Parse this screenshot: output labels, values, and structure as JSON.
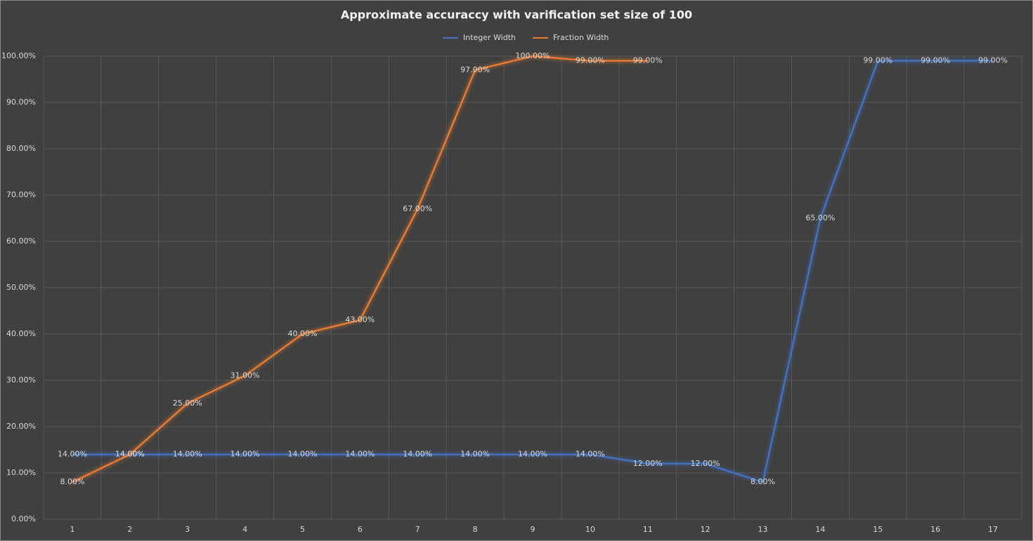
{
  "chart_data": {
    "type": "line",
    "title": "Approximate accuraccy with varification set size of 100",
    "categories": [
      1,
      2,
      3,
      4,
      5,
      6,
      7,
      8,
      9,
      10,
      11,
      12,
      13,
      14,
      15,
      16,
      17
    ],
    "series": [
      {
        "name": "Integer Width",
        "color": "#4472c4",
        "values": [
          14,
          14,
          14,
          14,
          14,
          14,
          14,
          14,
          14,
          14,
          12,
          12,
          8,
          65,
          99,
          99,
          99
        ],
        "value_labels": [
          "14.00%",
          "14.00%",
          "14.00%",
          "14.00%",
          "14.00%",
          "14.00%",
          "14.00%",
          "14.00%",
          "14.00%",
          "14.00%",
          "12.00%",
          "12.00%",
          "8.00%",
          "65.00%",
          "99.00%",
          "99.00%",
          "99.00%"
        ]
      },
      {
        "name": "Fraction Width",
        "color": "#ed7d31",
        "values": [
          8,
          14,
          25,
          31,
          40,
          43,
          67,
          97,
          100,
          99,
          99,
          null,
          null,
          null,
          null,
          null,
          null
        ],
        "value_labels": [
          "8.00%",
          "14.00%",
          "25.00%",
          "31.00%",
          "40.00%",
          "43.00%",
          "67.00%",
          "97.00%",
          "100.00%",
          "99.00%",
          "99.00%",
          null,
          null,
          null,
          null,
          null,
          null
        ]
      }
    ],
    "ylim": [
      0,
      100
    ],
    "yticks": [
      {
        "value": 0,
        "label": "0.00%"
      },
      {
        "value": 10,
        "label": "10.00%"
      },
      {
        "value": 20,
        "label": "20.00%"
      },
      {
        "value": 30,
        "label": "30.00%"
      },
      {
        "value": 40,
        "label": "40.00%"
      },
      {
        "value": 50,
        "label": "50.00%"
      },
      {
        "value": 60,
        "label": "60.00%"
      },
      {
        "value": 70,
        "label": "70.00%"
      },
      {
        "value": 80,
        "label": "80.00%"
      },
      {
        "value": 90,
        "label": "90.00%"
      },
      {
        "value": 100,
        "label": "100.00%"
      }
    ],
    "grid": true,
    "legend": "top"
  }
}
